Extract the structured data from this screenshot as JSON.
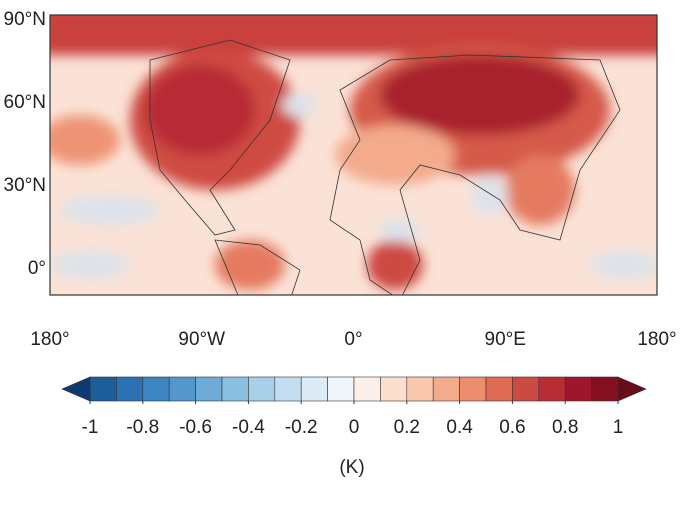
{
  "map": {
    "lat_labels": [
      "90°N",
      "60°N",
      "30°N",
      "0°"
    ],
    "lon_labels": [
      "180°",
      "90°W",
      "0°",
      "90°E",
      "180°"
    ]
  },
  "colorbar": {
    "lim": [
      -1,
      1
    ],
    "ticks": [
      -1,
      -0.8,
      -0.6,
      -0.4,
      -0.2,
      0,
      0.2,
      0.4,
      0.6,
      0.8,
      1
    ],
    "colors": [
      "#1d5d9b",
      "#2c70b2",
      "#3d84c2",
      "#5497cc",
      "#6eabd6",
      "#8bbfe1",
      "#a8d0e9",
      "#c4ddef",
      "#dcebf5",
      "#eff5fa",
      "#fdf0e8",
      "#fbdecd",
      "#f8c7ae",
      "#f3ab8c",
      "#ec8d6e",
      "#df6c55",
      "#cd4a42",
      "#b82c34",
      "#9e162b",
      "#85101f"
    ],
    "extend_colors": [
      "#0e3a74",
      "#6a0c18"
    ],
    "label": "(K)"
  }
}
